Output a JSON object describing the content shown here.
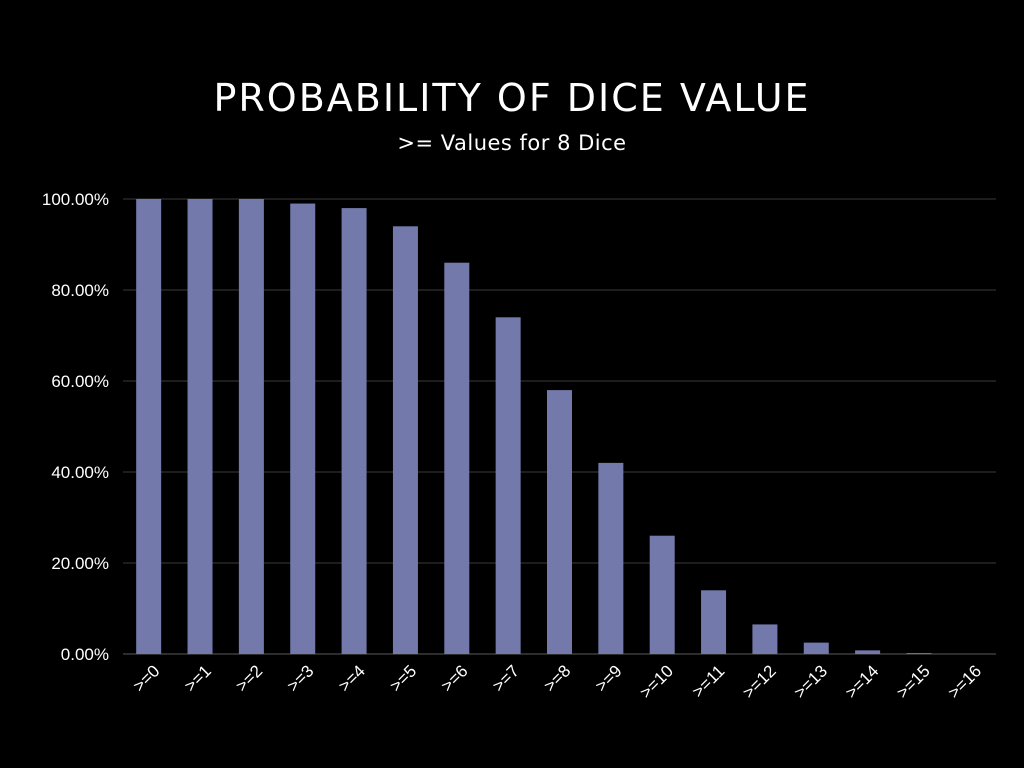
{
  "chart_data": {
    "type": "bar",
    "title": "PROBABILITY OF DICE VALUE",
    "subtitle": ">= Values for 8 Dice",
    "xlabel": "",
    "ylabel": "",
    "categories": [
      ">=0",
      ">=1",
      ">=2",
      ">=3",
      ">=4",
      ">=5",
      ">=6",
      ">=7",
      ">=8",
      ">=9",
      ">=10",
      ">=11",
      ">=12",
      ">=13",
      ">=14",
      ">=15",
      ">=16"
    ],
    "values": [
      100.0,
      100.0,
      100.0,
      99.0,
      98.0,
      94.0,
      86.0,
      74.0,
      58.0,
      42.0,
      26.0,
      14.0,
      6.5,
      2.5,
      0.8,
      0.2,
      0.0
    ],
    "ylim": [
      0,
      100
    ],
    "yticks": [
      "0.00%",
      "20.00%",
      "40.00%",
      "60.00%",
      "80.00%",
      "100.00%"
    ],
    "ytick_values": [
      0,
      20,
      40,
      60,
      80,
      100
    ],
    "grid": true,
    "legend": "none",
    "colors": {
      "background": "#000000",
      "bar": "#737aab",
      "grid": "#3a3a3a",
      "text": "#ffffff"
    }
  }
}
